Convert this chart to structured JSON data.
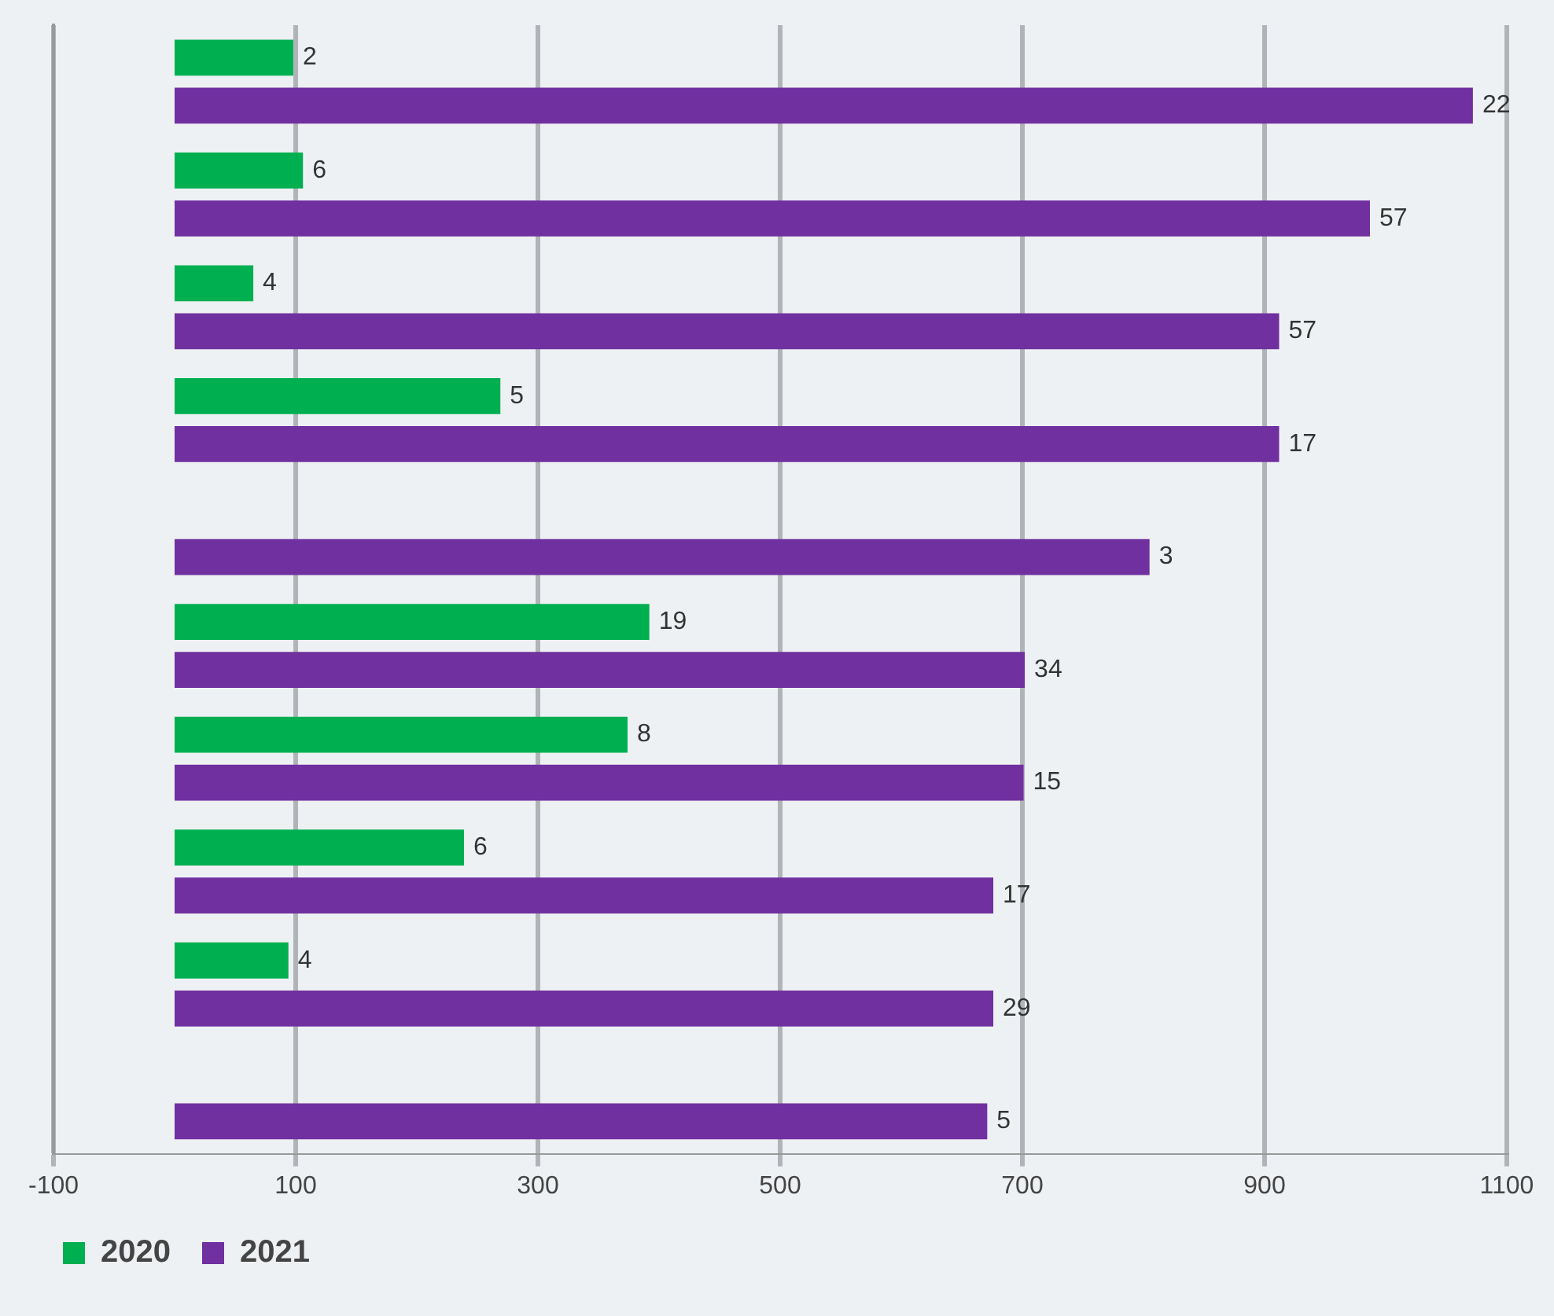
{
  "chart_data": {
    "type": "bar",
    "orientation": "horizontal",
    "categories": [
      null,
      null,
      null,
      null,
      null,
      null,
      null,
      null,
      null,
      null
    ],
    "series": [
      {
        "name": "2020",
        "color": "#00b050",
        "values": [
          98,
          106,
          65,
          269,
          null,
          392,
          374,
          239,
          94,
          null
        ]
      },
      {
        "name": "2021",
        "color": "#7030a0",
        "values": [
          1072,
          987,
          912,
          912,
          805,
          702,
          701,
          676,
          676,
          671
        ]
      }
    ],
    "annotations": [
      "2",
      "6",
      "4",
      "5",
      "19",
      "8",
      "6",
      "4",
      "22",
      "57",
      "57",
      "17",
      "3",
      "34",
      "15",
      "17",
      "29",
      "5"
    ],
    "xlim": [
      -100,
      1100
    ],
    "xticks": [
      -100,
      100,
      300,
      500,
      700,
      900,
      1100
    ],
    "grid": "x",
    "legend": "bottom left"
  }
}
